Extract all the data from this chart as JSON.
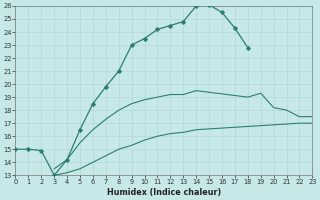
{
  "xlabel": "Humidex (Indice chaleur)",
  "bg_color": "#c6e8e8",
  "line_color": "#2d7d72",
  "grid_color": "#b0d4d4",
  "xlim": [
    0,
    23
  ],
  "ylim": [
    13,
    26
  ],
  "xticks": [
    0,
    1,
    2,
    3,
    4,
    5,
    6,
    7,
    8,
    9,
    10,
    11,
    12,
    13,
    14,
    15,
    16,
    17,
    18,
    19,
    20,
    21,
    22,
    23
  ],
  "yticks": [
    13,
    14,
    15,
    16,
    17,
    18,
    19,
    20,
    21,
    22,
    23,
    24,
    25,
    26
  ],
  "line1_x": [
    0,
    1,
    2,
    3,
    4,
    5,
    6,
    7,
    8,
    9,
    10,
    11,
    12,
    13,
    14,
    15,
    16,
    17,
    18
  ],
  "line1_y": [
    15.0,
    15.0,
    14.9,
    13.0,
    14.2,
    16.5,
    18.5,
    19.8,
    21.0,
    23.0,
    23.5,
    24.2,
    24.5,
    24.8,
    26.0,
    26.1,
    25.5,
    24.3,
    22.8
  ],
  "line2_x": [
    3,
    4,
    5,
    6,
    7,
    8,
    9,
    10,
    11,
    12,
    13,
    14,
    18,
    19,
    20,
    21,
    22,
    23
  ],
  "line2_y": [
    13.5,
    14.2,
    15.5,
    16.5,
    17.3,
    18.0,
    18.5,
    18.8,
    19.0,
    19.2,
    19.2,
    19.5,
    19.0,
    19.3,
    18.2,
    18.0,
    17.5,
    17.5
  ],
  "line3_x": [
    3,
    4,
    5,
    6,
    7,
    8,
    9,
    10,
    11,
    12,
    13,
    14,
    22,
    23
  ],
  "line3_y": [
    13.0,
    13.2,
    13.5,
    14.0,
    14.5,
    15.0,
    15.3,
    15.7,
    16.0,
    16.2,
    16.3,
    16.5,
    17.0,
    17.0
  ]
}
